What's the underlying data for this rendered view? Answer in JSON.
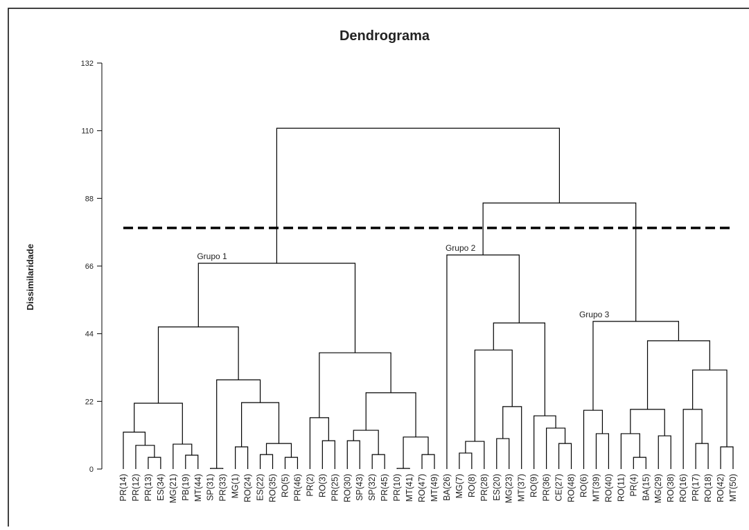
{
  "chart_data": {
    "type": "dendrogram",
    "title": "Dendrograma",
    "y_label": "Dissimilaridade",
    "ylim": [
      0,
      132
    ],
    "yticks": [
      0,
      22,
      44,
      66,
      88,
      110,
      132
    ],
    "color": "#000000",
    "cut_height": 78.4,
    "leaves": [
      "PR(14)",
      "PR(12)",
      "PR(13)",
      "ES(34)",
      "MG(21)",
      "PB(19)",
      "MT(44)",
      "SP(31)",
      "PR(33)",
      "MG(1)",
      "RO(24)",
      "ES(22)",
      "RO(35)",
      "RO(5)",
      "PR(46)",
      "PR(2)",
      "RO(3)",
      "PR(25)",
      "RO(30)",
      "SP(43)",
      "SP(32)",
      "PR(45)",
      "PR(10)",
      "MT(41)",
      "RO(47)",
      "MT(49)",
      "BA(26)",
      "MG(7)",
      "RO(8)",
      "PR(28)",
      "ES(20)",
      "MG(23)",
      "MT(37)",
      "RO(9)",
      "PR(36)",
      "CE(27)",
      "RO(48)",
      "RO(6)",
      "MT(39)",
      "RO(40)",
      "RO(11)",
      "PR(4)",
      "BA(15)",
      "MG(29)",
      "RO(38)",
      "RO(16)",
      "PR(17)",
      "RO(18)",
      "RO(42)",
      "MT(50)"
    ],
    "merges": [
      {
        "left": 2,
        "right": 3,
        "height": 3.8
      },
      {
        "left": 1,
        "right": 50,
        "height": 7.7
      },
      {
        "left": 0,
        "right": 51,
        "height": 12
      },
      {
        "left": 5,
        "right": 6,
        "height": 4.5
      },
      {
        "left": 4,
        "right": 53,
        "height": 8.1
      },
      {
        "left": 52,
        "right": 54,
        "height": 21.4
      },
      {
        "left": 7,
        "right": 8,
        "height": 0.2
      },
      {
        "left": 9,
        "right": 10,
        "height": 7.2
      },
      {
        "left": 11,
        "right": 12,
        "height": 4.7
      },
      {
        "left": 13,
        "right": 14,
        "height": 3.8
      },
      {
        "left": 58,
        "right": 59,
        "height": 8.3
      },
      {
        "left": 57,
        "right": 60,
        "height": 21.6
      },
      {
        "left": 56,
        "right": 61,
        "height": 29
      },
      {
        "left": 55,
        "right": 62,
        "height": 46.2
      },
      {
        "left": 16,
        "right": 17,
        "height": 9.2
      },
      {
        "left": 15,
        "right": 64,
        "height": 16.7
      },
      {
        "left": 18,
        "right": 19,
        "height": 9.2
      },
      {
        "left": 20,
        "right": 21,
        "height": 4.7
      },
      {
        "left": 66,
        "right": 67,
        "height": 12.6
      },
      {
        "left": 22,
        "right": 23,
        "height": 0.2
      },
      {
        "left": 24,
        "right": 25,
        "height": 4.7
      },
      {
        "left": 69,
        "right": 70,
        "height": 10.4
      },
      {
        "left": 68,
        "right": 71,
        "height": 24.8
      },
      {
        "left": 65,
        "right": 72,
        "height": 37.8
      },
      {
        "left": 63,
        "right": 73,
        "height": 66.9
      },
      {
        "left": 27,
        "right": 28,
        "height": 5.2
      },
      {
        "left": 75,
        "right": 29,
        "height": 9
      },
      {
        "left": 30,
        "right": 31,
        "height": 9.9
      },
      {
        "left": 77,
        "right": 32,
        "height": 20.3
      },
      {
        "left": 76,
        "right": 78,
        "height": 38.7
      },
      {
        "left": 35,
        "right": 36,
        "height": 8.3
      },
      {
        "left": 34,
        "right": 80,
        "height": 13.3
      },
      {
        "left": 33,
        "right": 81,
        "height": 17.3
      },
      {
        "left": 79,
        "right": 82,
        "height": 47.5
      },
      {
        "left": 26,
        "right": 83,
        "height": 69.6
      },
      {
        "left": 38,
        "right": 39,
        "height": 11.5
      },
      {
        "left": 37,
        "right": 85,
        "height": 19.1
      },
      {
        "left": 41,
        "right": 42,
        "height": 3.8
      },
      {
        "left": 40,
        "right": 87,
        "height": 11.5
      },
      {
        "left": 43,
        "right": 44,
        "height": 10.8
      },
      {
        "left": 88,
        "right": 89,
        "height": 19.4
      },
      {
        "left": 46,
        "right": 47,
        "height": 8.3
      },
      {
        "left": 45,
        "right": 91,
        "height": 19.4
      },
      {
        "left": 48,
        "right": 49,
        "height": 7.2
      },
      {
        "left": 92,
        "right": 93,
        "height": 32.2
      },
      {
        "left": 90,
        "right": 94,
        "height": 41.7
      },
      {
        "left": 86,
        "right": 95,
        "height": 48
      },
      {
        "left": 84,
        "right": 96,
        "height": 86.5
      },
      {
        "left": 74,
        "right": 97,
        "height": 110.8
      }
    ],
    "annotations": [
      "Grupo 1",
      "Grupo 2",
      "Grupo 3"
    ]
  }
}
